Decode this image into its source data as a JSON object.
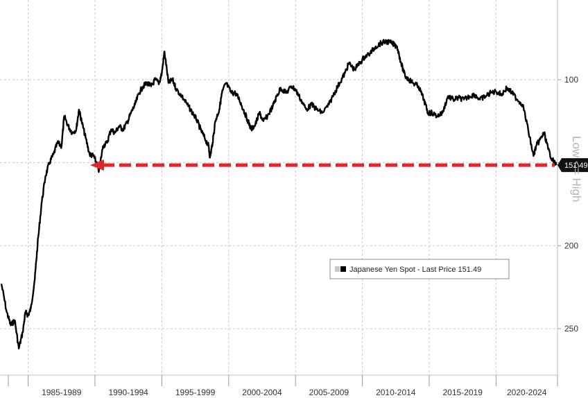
{
  "chart_data": {
    "type": "line",
    "title": "",
    "ylabel": "Low <= High",
    "y_inverted": true,
    "ylim": [
      52,
      278
    ],
    "yticks": [
      100,
      150,
      200,
      250
    ],
    "ytick_labels": [
      "100",
      "",
      "200",
      "250"
    ],
    "xlim": [
      1983.0,
      2024.7
    ],
    "x_period_labels": [
      "1985-1989",
      "1990-1994",
      "1995-1999",
      "2000-2004",
      "2005-2009",
      "2010-2014",
      "2015-2019",
      "2020-2024"
    ],
    "grid": true,
    "legend_position": "center-right",
    "series": [
      {
        "name": "Japanese Yen Spot - Last Price 151.49",
        "color": "#000000",
        "last_value": "151.49",
        "x": [
          1983.0,
          1983.4,
          1983.7,
          1984.0,
          1984.3,
          1984.6,
          1984.8,
          1985.0,
          1985.2,
          1985.5,
          1985.7,
          1986.0,
          1986.3,
          1986.6,
          1986.9,
          1987.2,
          1987.5,
          1987.7,
          1988.0,
          1988.3,
          1988.6,
          1988.8,
          1989.0,
          1989.3,
          1989.6,
          1989.9,
          1990.1,
          1990.3,
          1990.6,
          1990.9,
          1991.2,
          1991.5,
          1991.8,
          1992.1,
          1992.4,
          1992.7,
          1993.0,
          1993.3,
          1993.6,
          1993.9,
          1994.2,
          1994.5,
          1994.8,
          1995.0,
          1995.2,
          1995.5,
          1995.8,
          1996.1,
          1996.5,
          1996.9,
          1997.3,
          1997.6,
          1997.9,
          1998.2,
          1998.5,
          1998.6,
          1998.8,
          1999.0,
          1999.3,
          1999.5,
          1999.8,
          2000.2,
          2000.5,
          2000.8,
          2001.1,
          2001.4,
          2001.7,
          2002.0,
          2002.3,
          2002.6,
          2002.9,
          2003.3,
          2003.6,
          2003.9,
          2004.3,
          2004.7,
          2005.0,
          2005.4,
          2005.8,
          2006.2,
          2006.6,
          2007.0,
          2007.5,
          2007.9,
          2008.3,
          2008.7,
          2009.0,
          2009.4,
          2009.8,
          2010.2,
          2010.6,
          2011.0,
          2011.4,
          2011.8,
          2012.2,
          2012.6,
          2012.9,
          2013.2,
          2013.5,
          2013.8,
          2014.2,
          2014.6,
          2014.9,
          2015.2,
          2015.6,
          2016.0,
          2016.4,
          2016.8,
          2017.2,
          2017.6,
          2018.0,
          2018.4,
          2018.8,
          2019.2,
          2019.6,
          2020.0,
          2020.4,
          2020.8,
          2021.2,
          2021.6,
          2022.0,
          2022.4,
          2022.8,
          2023.0,
          2023.3,
          2023.6,
          2023.9,
          2024.2,
          2024.5
        ],
        "y": [
          223,
          240,
          248,
          245,
          262,
          252,
          240,
          242,
          238,
          220,
          200,
          175,
          158,
          150,
          145,
          138,
          140,
          122,
          128,
          132,
          130,
          118,
          125,
          135,
          145,
          146,
          150,
          155,
          140,
          138,
          130,
          132,
          128,
          130,
          126,
          120,
          115,
          108,
          104,
          102,
          104,
          100,
          102,
          96,
          83,
          102,
          100,
          106,
          110,
          115,
          120,
          124,
          130,
          135,
          140,
          147,
          138,
          125,
          118,
          108,
          102,
          108,
          108,
          112,
          118,
          124,
          130,
          127,
          120,
          125,
          122,
          116,
          110,
          105,
          108,
          104,
          106,
          112,
          118,
          115,
          118,
          120,
          115,
          108,
          102,
          96,
          90,
          94,
          90,
          86,
          84,
          80,
          78,
          77,
          78,
          80,
          90,
          98,
          100,
          102,
          104,
          112,
          120,
          120,
          122,
          120,
          110,
          112,
          111,
          112,
          110,
          109,
          112,
          110,
          108,
          107,
          109,
          105,
          108,
          112,
          115,
          130,
          146,
          140,
          136,
          132,
          142,
          148,
          151.49
        ]
      }
    ],
    "reference_line": {
      "value": 151.49,
      "style": "dashed-arrow",
      "color": "#e0262b"
    }
  }
}
